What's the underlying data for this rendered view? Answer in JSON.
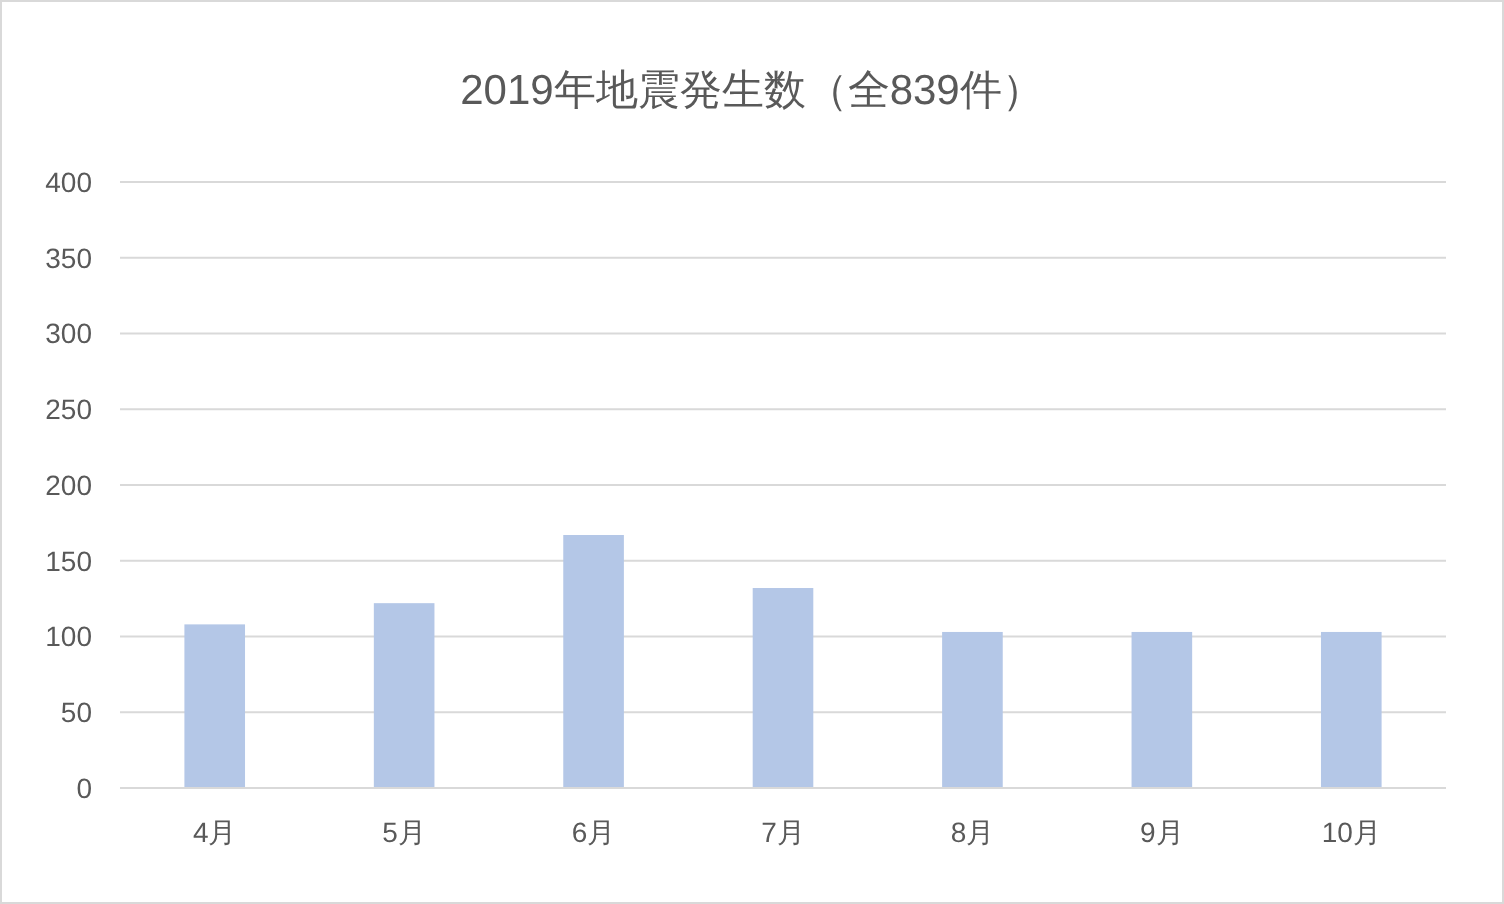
{
  "chart_data": {
    "type": "bar",
    "title": "2019年地震発生数（全839件）",
    "categories": [
      "4月",
      "5月",
      "6月",
      "7月",
      "8月",
      "9月",
      "10月"
    ],
    "values": [
      108,
      122,
      167,
      132,
      103,
      103,
      103
    ],
    "color": "#b4c7e7",
    "ylim": [
      0,
      400
    ],
    "yticks": [
      0,
      50,
      100,
      150,
      200,
      250,
      300,
      350,
      400
    ],
    "grid": "y"
  }
}
